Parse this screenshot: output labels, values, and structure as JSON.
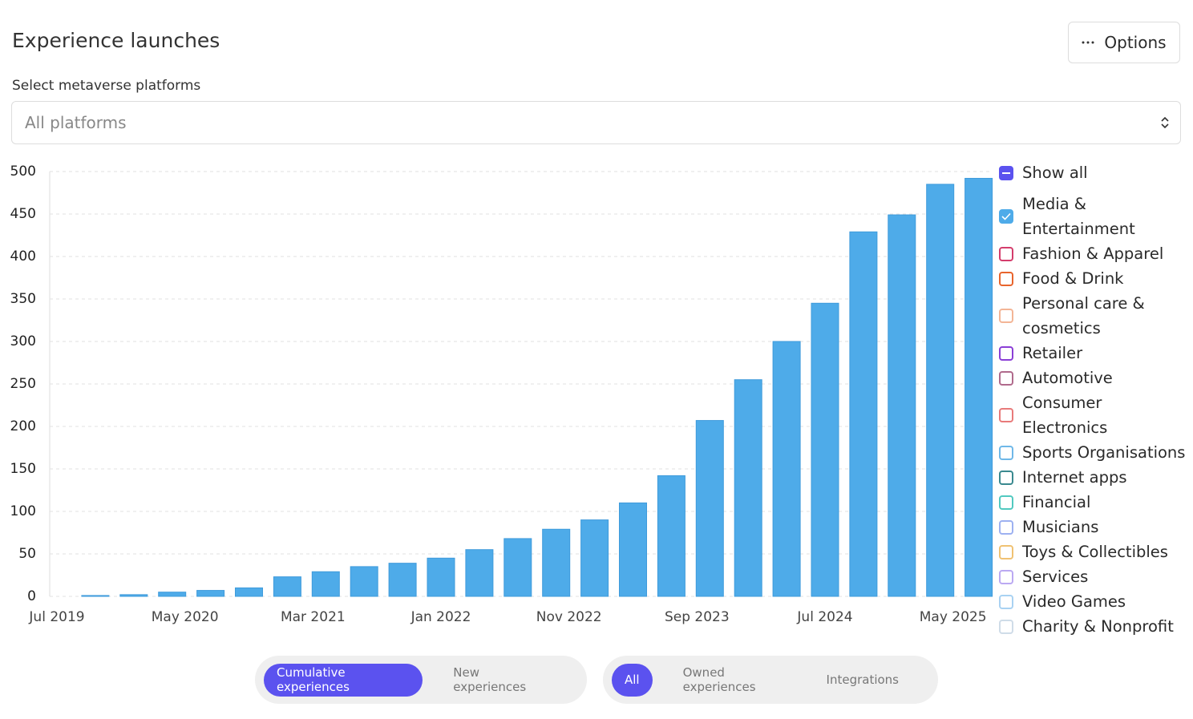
{
  "header": {
    "title": "Experience launches",
    "options_button": "Options"
  },
  "platform_select": {
    "label": "Select metaverse platforms",
    "placeholder": "All platforms"
  },
  "chart_data": {
    "type": "bar",
    "categories": [
      null,
      null,
      null,
      null,
      null,
      null,
      null,
      null,
      null,
      null,
      null,
      null,
      null,
      null,
      null,
      null,
      null,
      null,
      null,
      null,
      null,
      null,
      null,
      null,
      null
    ],
    "x_labels": [
      "Jul 2019",
      "May 2020",
      "Mar 2021",
      "Jan 2022",
      "Nov 2022",
      "Sep 2023",
      "Jul 2024",
      "May 2025"
    ],
    "series": [
      {
        "color": "#4eabe9",
        "values": [
          0,
          1,
          2,
          5,
          7,
          10,
          23,
          29,
          35,
          39,
          45,
          55,
          68,
          79,
          90,
          110,
          142,
          207,
          255,
          300,
          345,
          429,
          449,
          485,
          492
        ]
      }
    ],
    "ylim": [
      0,
      500
    ],
    "yticks": [
      0,
      50,
      100,
      150,
      200,
      250,
      300,
      350,
      400,
      450,
      500
    ],
    "grid": true,
    "legend": {
      "corner": "right",
      "show_all": "Show all",
      "items": [
        {
          "name": "Media & Entertainment",
          "color": "#4eabe9",
          "checked": true
        },
        {
          "name": "Fashion & Apparel",
          "color": "#d43d6c",
          "checked": false
        },
        {
          "name": "Food & Drink",
          "color": "#e8642c",
          "checked": false
        },
        {
          "name": "Personal care & cosmetics",
          "color": "#f3b596",
          "checked": false
        },
        {
          "name": "Retailer",
          "color": "#8b3fd6",
          "checked": false
        },
        {
          "name": "Automotive",
          "color": "#b06a8c",
          "checked": false
        },
        {
          "name": "Consumer Electronics",
          "color": "#e87a7a",
          "checked": false
        },
        {
          "name": "Sports Organisations",
          "color": "#6fb8e8",
          "checked": false
        },
        {
          "name": "Internet apps",
          "color": "#3a898f",
          "checked": false
        },
        {
          "name": "Financial",
          "color": "#52c9c0",
          "checked": false
        },
        {
          "name": "Musicians",
          "color": "#9db1f1",
          "checked": false
        },
        {
          "name": "Toys & Collectibles",
          "color": "#f0c273",
          "checked": false
        },
        {
          "name": "Services",
          "color": "#bba9f2",
          "checked": false
        },
        {
          "name": "Video Games",
          "color": "#a9d2f2",
          "checked": false
        },
        {
          "name": "Charity & Nonprofit",
          "color": "#cfdce8",
          "checked": false
        }
      ]
    }
  },
  "toggles": {
    "measure": [
      {
        "label": "Cumulative experiences",
        "active": true
      },
      {
        "label": "New experiences",
        "active": false
      }
    ],
    "scope": [
      {
        "label": "All",
        "active": true
      },
      {
        "label": "Owned experiences",
        "active": false
      },
      {
        "label": "Integrations",
        "active": false
      }
    ]
  }
}
